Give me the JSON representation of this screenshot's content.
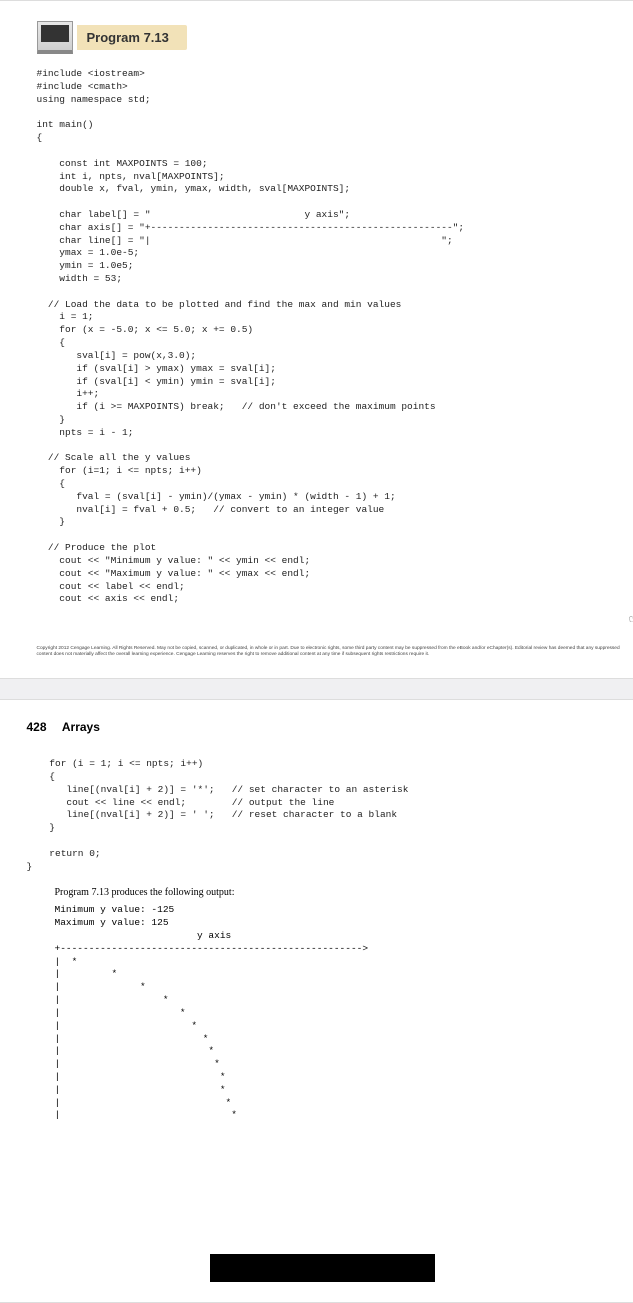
{
  "program_header": "Program 7.13",
  "code_block1": "#include <iostream>\n#include <cmath>\nusing namespace std;\n\nint main()\n{\n\n    const int MAXPOINTS = 100;\n    int i, npts, nval[MAXPOINTS];\n    double x, fval, ymin, ymax, width, sval[MAXPOINTS];\n\n    char label[] = \"                           y axis\";\n    char axis[] = \"+-----------------------------------------------------\";\n    char line[] = \"|                                                   \";\n    ymax = 1.0e-5;\n    ymin = 1.0e5;\n    width = 53;\n\n  // Load the data to be plotted and find the max and min values\n    i = 1;\n    for (x = -5.0; x <= 5.0; x += 0.5)\n    {\n       sval[i] = pow(x,3.0);\n       if (sval[i] > ymax) ymax = sval[i];\n       if (sval[i] < ymin) ymin = sval[i];\n       i++;\n       if (i >= MAXPOINTS) break;   // don't exceed the maximum points\n    }\n    npts = i - 1;\n\n  // Scale all the y values\n    for (i=1; i <= npts; i++)\n    {\n       fval = (sval[i] - ymin)/(ymax - ymin) * (width - 1) + 1;\n       nval[i] = fval + 0.5;   // convert to an integer value\n    }\n\n  // Produce the plot\n    cout << \"Minimum y value: \" << ymin << endl;\n    cout << \"Maximum y value: \" << ymax << endl;\n    cout << label << endl;\n    cout << axis << endl;",
  "axis_arrow_suffix": ">\";",
  "line_suffix": "\";",
  "hand_icon_glyph": "☞",
  "copyright_text": "Copyright 2012 Cengage Learning. All Rights Reserved. May not be copied, scanned, or duplicated, in whole or in part. Due to electronic rights, some third party content may be suppressed from the eBook and/or eChapter(s).\nEditorial review has deemed that any suppressed content does not materially affect the overall learning experience. Cengage Learning reserves the right to remove additional content at any time if subsequent rights restrictions require it.",
  "page_number": "428",
  "chapter_title": "Arrays",
  "code_block2": "    for (i = 1; i <= npts; i++)\n    {\n       line[(nval[i] + 2)] = '*';   // set character to an asterisk\n       cout << line << endl;        // output the line\n       line[(nval[i] + 2)] = ' ';   // reset character to a blank\n    }\n\n    return 0;\n}",
  "body_text": "Program 7.13 produces the following output:",
  "output_block": "Minimum y value: -125\nMaximum y value: 125\n                         y axis\n+----------------------------------------------------->\n|  *\n|         *\n|              *\n|                  *\n|                     *\n|                       *\n|                         *\n|                          *\n|                           *\n|                            *\n|                            *\n|                             *\n|                              *"
}
